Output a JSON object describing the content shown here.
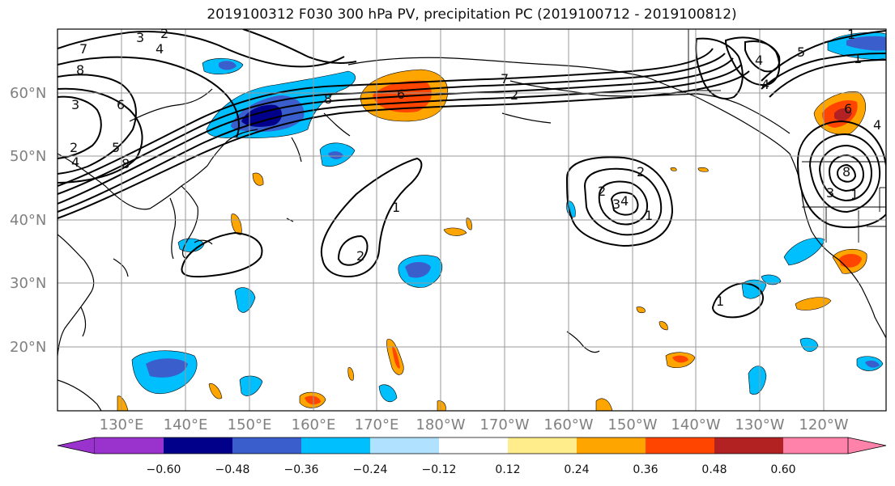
{
  "title": "2019100312 F030 300 hPa PV, precipitation PC (2019100712 - 2019100812)",
  "lat_labels": [
    "60°N",
    "50°N",
    "40°N",
    "30°N",
    "20°N"
  ],
  "lon_labels": [
    "130°E",
    "140°E",
    "150°E",
    "160°E",
    "170°E",
    "180°W",
    "170°W",
    "160°W",
    "150°W",
    "140°W",
    "130°W",
    "120°W"
  ],
  "colorbar": {
    "colors": [
      "#9a32cd",
      "#00008b",
      "#3a5fcd",
      "#00bfff",
      "#b0e2ff",
      "#ffffff",
      "#ffec8b",
      "#ffa500",
      "#ff4500",
      "#b22222",
      "#ff82ab"
    ],
    "labels": [
      "−0.60",
      "−0.48",
      "−0.36",
      "−0.24",
      "−0.12",
      "0.12",
      "0.24",
      "0.36",
      "0.48",
      "0.60"
    ]
  },
  "contour_labels": [
    "2",
    "3",
    "4",
    "7",
    "8",
    "3",
    "6",
    "2",
    "4",
    "5",
    "8",
    "6",
    "8",
    "7",
    "2",
    "2",
    "1",
    "2",
    "2",
    "1",
    "3",
    "4",
    "1",
    "4",
    "5",
    "1",
    "1",
    "6",
    "4",
    "4",
    "8",
    "3",
    "1"
  ]
}
